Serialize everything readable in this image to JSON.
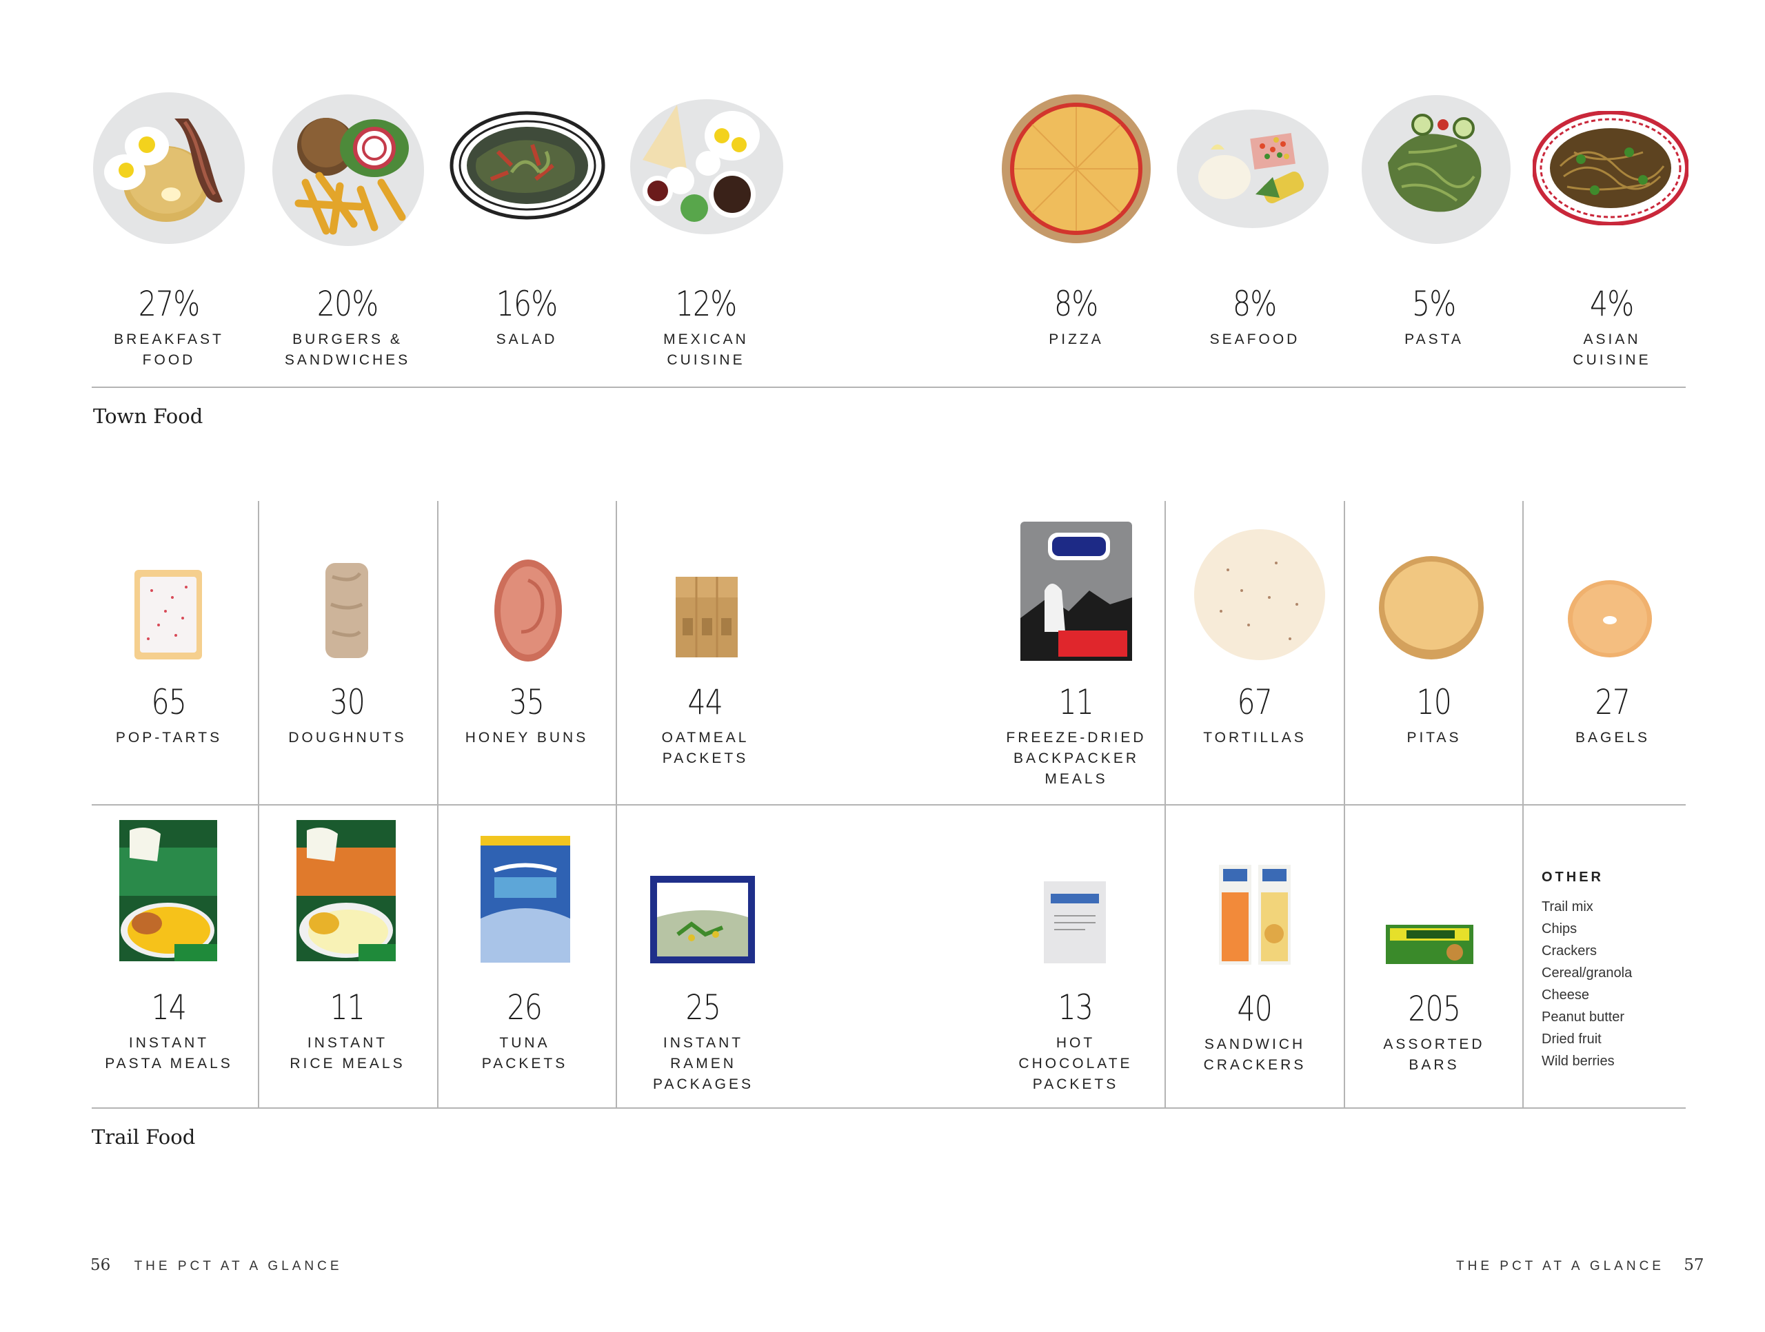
{
  "town_food": {
    "section_title": "Town Food",
    "items": [
      {
        "pct": "27%",
        "label1": "BREAKFAST",
        "label2": "FOOD"
      },
      {
        "pct": "20%",
        "label1": "BURGERS &",
        "label2": "SANDWICHES"
      },
      {
        "pct": "16%",
        "label1": "SALAD",
        "label2": ""
      },
      {
        "pct": "12%",
        "label1": "MEXICAN",
        "label2": "CUISINE"
      },
      {
        "pct": "8%",
        "label1": "PIZZA",
        "label2": ""
      },
      {
        "pct": "8%",
        "label1": "SEAFOOD",
        "label2": ""
      },
      {
        "pct": "5%",
        "label1": "PASTA",
        "label2": ""
      },
      {
        "pct": "4%",
        "label1": "ASIAN",
        "label2": "CUISINE"
      }
    ]
  },
  "trail_food": {
    "section_title": "Trail Food",
    "row1": [
      {
        "count": "65",
        "label1": "POP-TARTS",
        "label2": "",
        "label3": ""
      },
      {
        "count": "30",
        "label1": "DOUGHNUTS",
        "label2": "",
        "label3": ""
      },
      {
        "count": "35",
        "label1": "HONEY BUNS",
        "label2": "",
        "label3": ""
      },
      {
        "count": "44",
        "label1": "OATMEAL",
        "label2": "PACKETS",
        "label3": ""
      },
      {
        "count": "11",
        "label1": "FREEZE-DRIED",
        "label2": "BACKPACKER",
        "label3": "MEALS"
      },
      {
        "count": "67",
        "label1": "TORTILLAS",
        "label2": "",
        "label3": ""
      },
      {
        "count": "10",
        "label1": "PITAS",
        "label2": "",
        "label3": ""
      },
      {
        "count": "27",
        "label1": "BAGELS",
        "label2": "",
        "label3": ""
      }
    ],
    "row2": [
      {
        "count": "14",
        "label1": "INSTANT",
        "label2": "PASTA MEALS",
        "label3": ""
      },
      {
        "count": "11",
        "label1": "INSTANT",
        "label2": "RICE MEALS",
        "label3": ""
      },
      {
        "count": "26",
        "label1": "TUNA",
        "label2": "PACKETS",
        "label3": ""
      },
      {
        "count": "25",
        "label1": "INSTANT",
        "label2": "RAMEN",
        "label3": "PACKAGES"
      },
      {
        "count": "13",
        "label1": "HOT",
        "label2": "CHOCOLATE",
        "label3": "PACKETS"
      },
      {
        "count": "40",
        "label1": "SANDWICH",
        "label2": "CRACKERS",
        "label3": ""
      },
      {
        "count": "205",
        "label1": "ASSORTED",
        "label2": "BARS",
        "label3": ""
      }
    ],
    "other": {
      "title": "OTHER",
      "items": [
        "Trail mix",
        "Chips",
        "Crackers",
        "Cereal/granola",
        "Cheese",
        "Peanut butter",
        "Dried fruit",
        "Wild berries"
      ]
    }
  },
  "footer": {
    "left_page": "56",
    "left_text": "THE PCT AT A GLANCE",
    "right_text": "THE PCT AT A GLANCE",
    "right_page": "57"
  }
}
